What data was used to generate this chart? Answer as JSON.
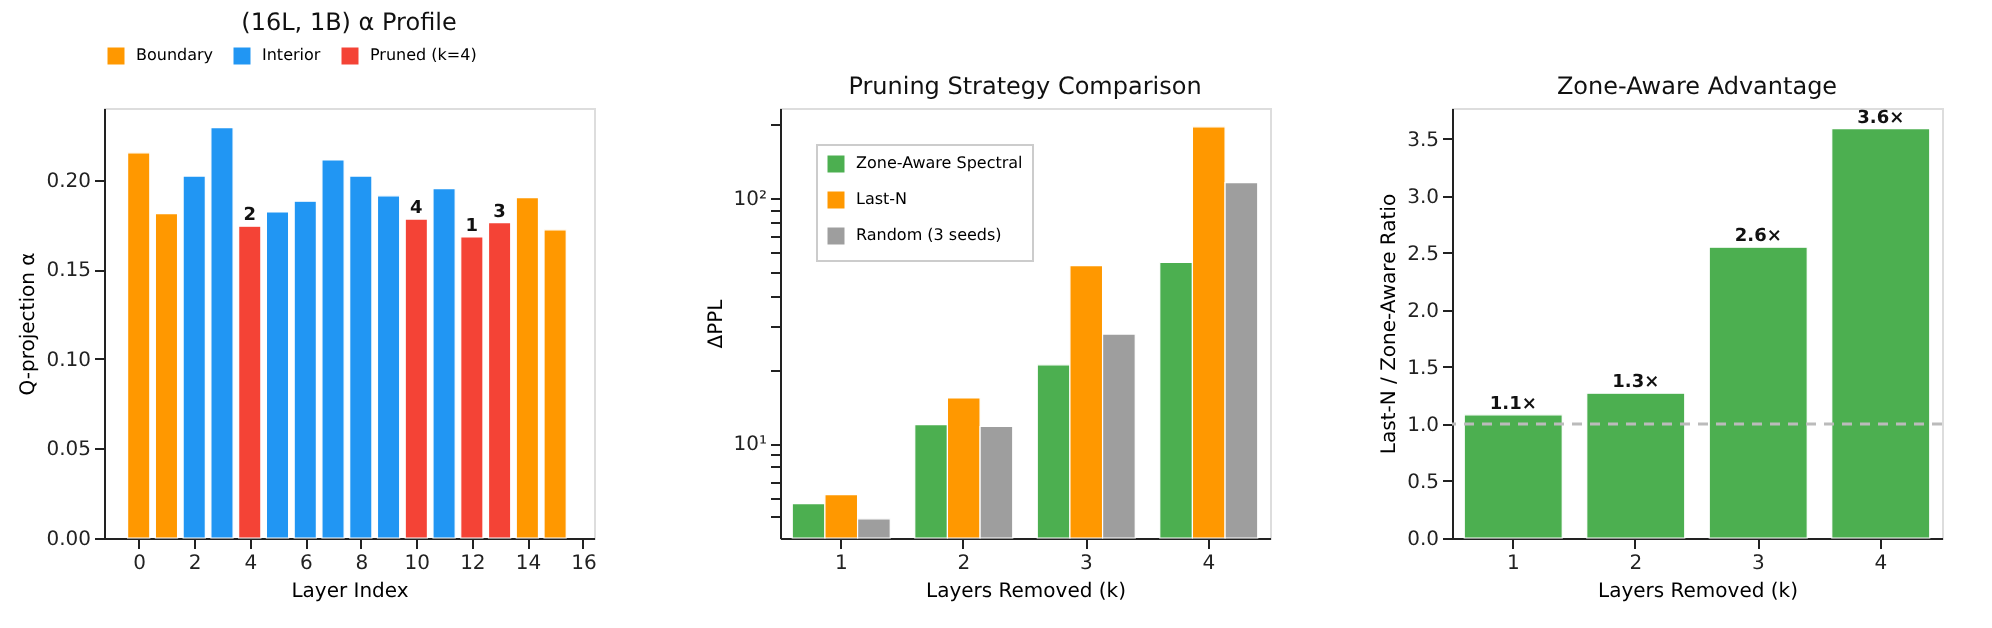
{
  "chart_data": [
    {
      "type": "bar",
      "title": "(16L, 1B) α Profile",
      "xlabel": "Layer Index",
      "ylabel": "Q-projection α",
      "legend": "top",
      "grid": false,
      "xlim": [
        -1.25,
        16.4
      ],
      "xticks": [
        0,
        2,
        4,
        6,
        8,
        10,
        12,
        14,
        16
      ],
      "ylim": [
        0,
        0.24
      ],
      "yticks": [
        {
          "value": 0,
          "label": "0.00"
        },
        {
          "value": 0.05,
          "label": "0.05"
        },
        {
          "value": 0.1,
          "label": "0.10"
        },
        {
          "value": 0.15,
          "label": "0.15"
        },
        {
          "value": 0.2,
          "label": "0.20"
        }
      ],
      "series": [
        {
          "name": "Boundary",
          "color": "#ff9800",
          "x": [
            0,
            1,
            14,
            15
          ],
          "values": [
            0.215,
            0.181,
            0.19,
            0.172
          ]
        },
        {
          "name": "Interior",
          "color": "#2196f3",
          "x": [
            2,
            3,
            5,
            6,
            7,
            8,
            9,
            11
          ],
          "values": [
            0.202,
            0.229,
            0.182,
            0.188,
            0.211,
            0.202,
            0.191,
            0.195
          ]
        },
        {
          "name": "Pruned (k=4)",
          "color": "#f44336",
          "x": [
            4,
            10,
            12,
            13
          ],
          "values": [
            0.174,
            0.178,
            0.168,
            0.176
          ]
        }
      ],
      "annotations": [
        {
          "text": "2",
          "x": 4,
          "y": 0.174
        },
        {
          "text": "4",
          "x": 10,
          "y": 0.178
        },
        {
          "text": "1",
          "x": 12,
          "y": 0.168
        },
        {
          "text": "3",
          "x": 13,
          "y": 0.176
        }
      ]
    },
    {
      "type": "bar",
      "title": "Pruning Strategy Comparison",
      "xlabel": "Layers Removed (k)",
      "ylabel": "ΔPPL",
      "legend": "top left",
      "grid": false,
      "log": "y",
      "categories": [
        "1",
        "2",
        "3",
        "4"
      ],
      "ylim": [
        4.1,
        234
      ],
      "yticks": [
        {
          "value": 5,
          "label": null
        },
        {
          "value": 6,
          "label": null
        },
        {
          "value": 7,
          "label": null
        },
        {
          "value": 8,
          "label": null
        },
        {
          "value": 9,
          "label": null
        },
        {
          "value": 10,
          "label": "10¹"
        },
        {
          "value": 20,
          "label": null
        },
        {
          "value": 30,
          "label": null
        },
        {
          "value": 40,
          "label": null
        },
        {
          "value": 50,
          "label": null
        },
        {
          "value": 60,
          "label": null
        },
        {
          "value": 70,
          "label": null
        },
        {
          "value": 80,
          "label": null
        },
        {
          "value": 90,
          "label": null
        },
        {
          "value": 100,
          "label": "10²"
        },
        {
          "value": 200,
          "label": null
        }
      ],
      "series": [
        {
          "name": "Zone-Aware Spectral",
          "color": "#4caf50",
          "values": [
            5.66,
            11.9,
            20.9,
            54.8
          ]
        },
        {
          "name": "Last-N",
          "color": "#ff9800",
          "values": [
            6.17,
            15.3,
            53.1,
            196
          ]
        },
        {
          "name": "Random (3 seeds)",
          "color": "#9e9e9e",
          "values": [
            4.91,
            11.7,
            27.9,
            116
          ]
        }
      ]
    },
    {
      "type": "bar",
      "title": "Zone-Aware Advantage",
      "xlabel": "Layers Removed (k)",
      "ylabel": "Last-N / Zone-Aware Ratio",
      "grid": false,
      "categories": [
        "1",
        "2",
        "3",
        "4"
      ],
      "ylim": [
        0,
        3.77
      ],
      "yticks": [
        {
          "value": 0,
          "label": "0.0"
        },
        {
          "value": 0.5,
          "label": "0.5"
        },
        {
          "value": 1,
          "label": "1.0"
        },
        {
          "value": 1.5,
          "label": "1.5"
        },
        {
          "value": 2,
          "label": "2.0"
        },
        {
          "value": 2.5,
          "label": "2.5"
        },
        {
          "value": 3,
          "label": "3.0"
        },
        {
          "value": 3.5,
          "label": "3.5"
        }
      ],
      "series": [
        {
          "color": "#4caf50",
          "values": [
            1.08,
            1.27,
            2.55,
            3.59
          ],
          "value_labels": [
            "1.1×",
            "1.3×",
            "2.6×",
            "3.6×"
          ]
        }
      ],
      "ref_lines": [
        {
          "axis": "y",
          "value": 1.0,
          "color": "#bbbbbb",
          "line_style": "dashed"
        }
      ]
    }
  ]
}
